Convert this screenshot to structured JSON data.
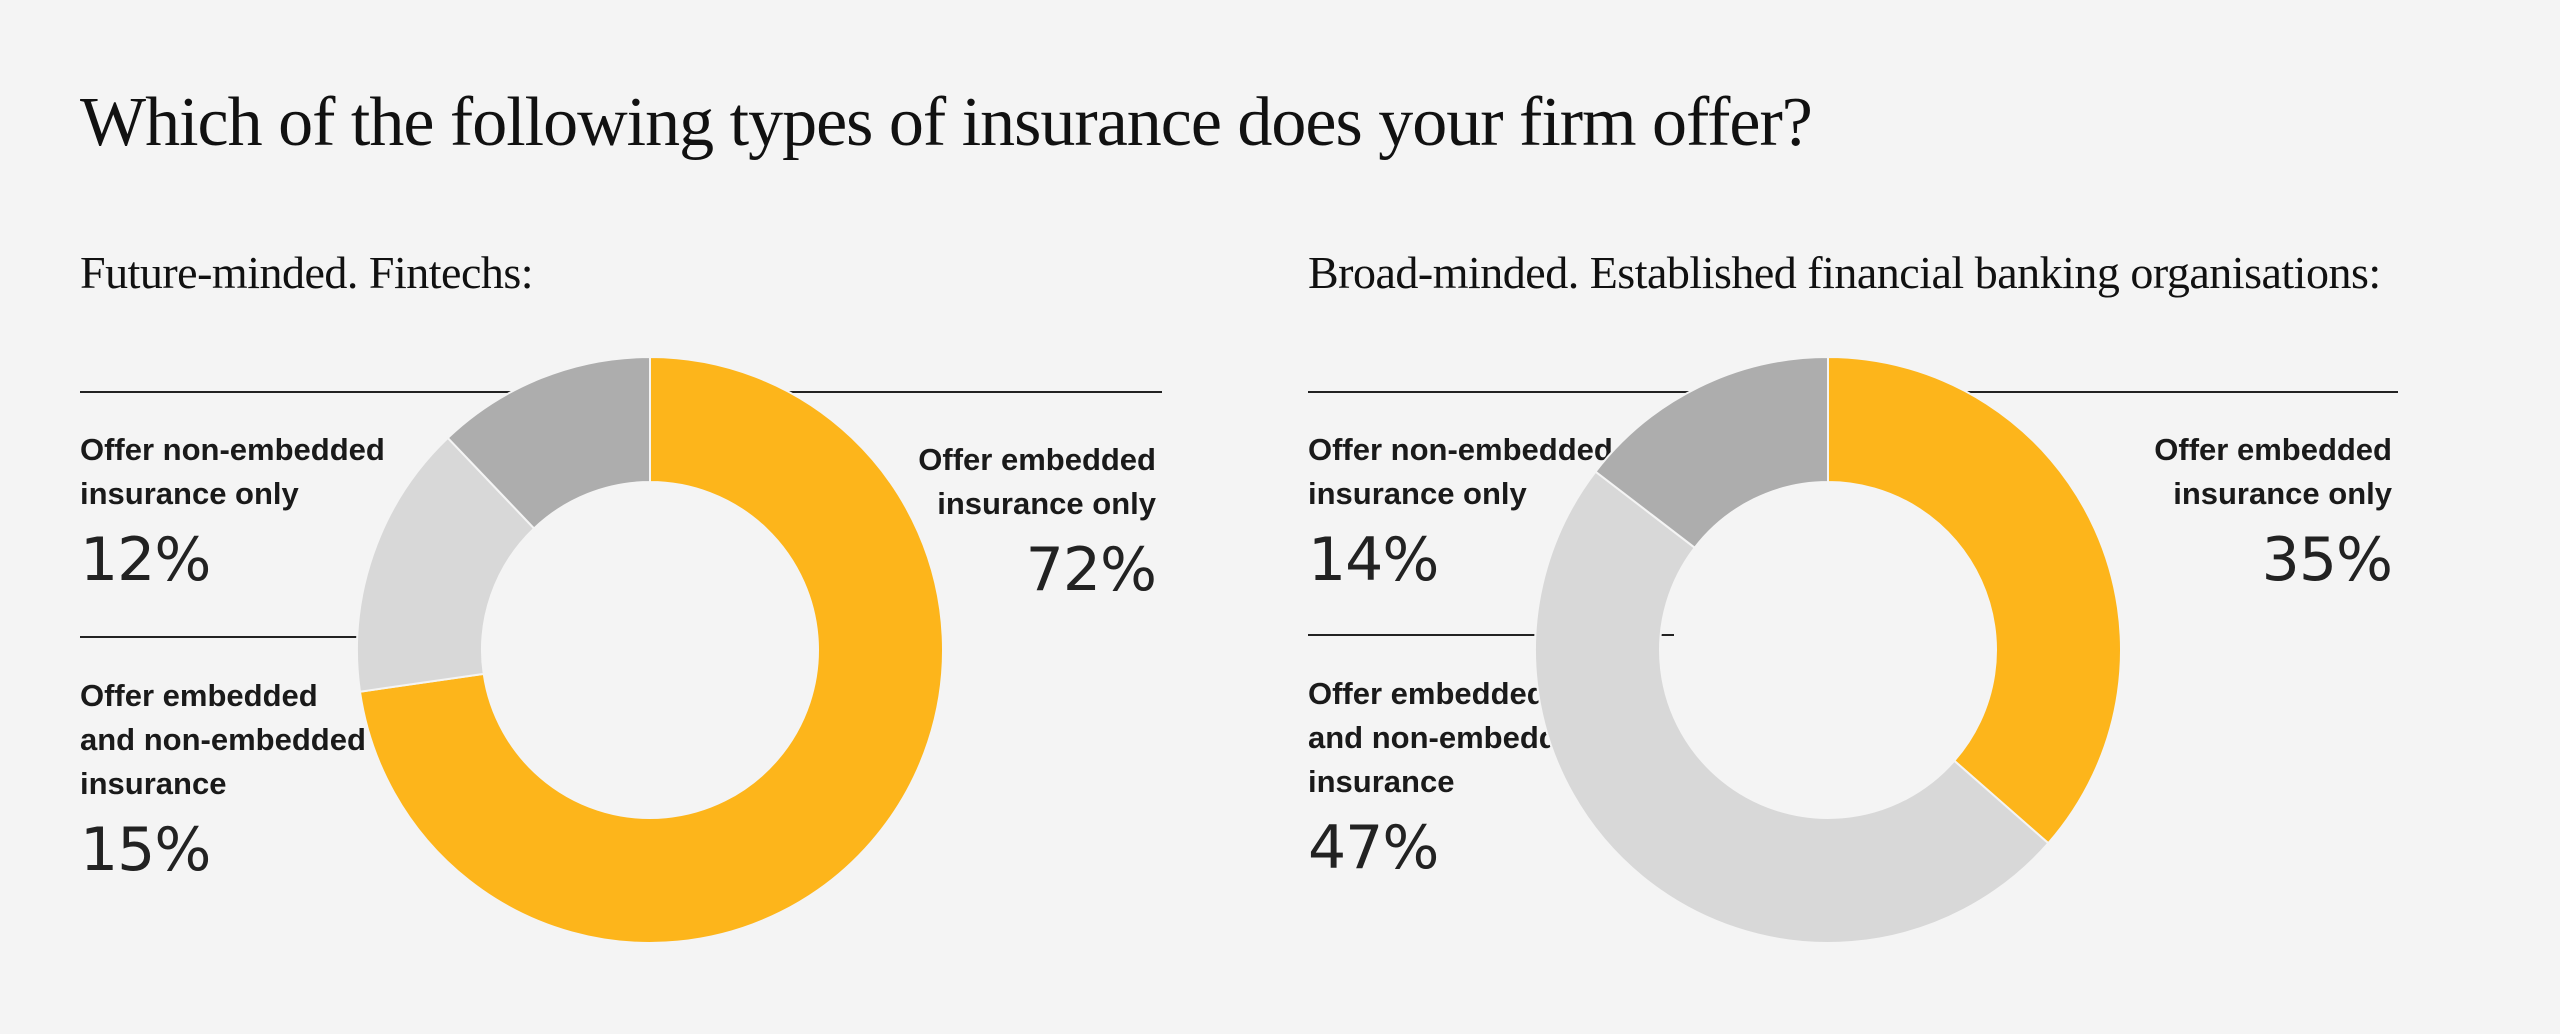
{
  "title": "Which of the following types of insurance does your firm offer?",
  "colors": {
    "background": "#f4f4f4",
    "embedded_only": "#fdb51b",
    "both": "#d8d8d8",
    "non_embedded_only": "#adadad"
  },
  "panels": [
    {
      "subtitle": "Future-minded. Fintechs:",
      "labels": {
        "non_embedded": [
          "Offer non-embedded",
          "insurance only"
        ],
        "both": [
          "Offer embedded",
          "and non-embedded",
          "insurance"
        ],
        "embedded": [
          "Offer embedded",
          "insurance only"
        ]
      },
      "values": {
        "non_embedded": "12%",
        "both": "15%",
        "embedded": "72%"
      }
    },
    {
      "subtitle": "Broad-minded. Established financial banking organisations:",
      "labels": {
        "non_embedded": [
          "Offer non-embedded",
          "insurance only"
        ],
        "both": [
          "Offer embedded",
          "and non-embedded",
          "insurance"
        ],
        "embedded": [
          "Offer embedded",
          "insurance only"
        ]
      },
      "values": {
        "non_embedded": "14%",
        "both": "47%",
        "embedded": "35%"
      }
    }
  ],
  "chart_data": [
    {
      "type": "pie",
      "donut": true,
      "title": "Future-minded. Fintechs:",
      "categories": [
        "Offer embedded insurance only",
        "Offer embedded and non-embedded insurance",
        "Offer non-embedded insurance only"
      ],
      "values": [
        72,
        15,
        12
      ],
      "colors": [
        "#fdb51b",
        "#d8d8d8",
        "#adadad"
      ]
    },
    {
      "type": "pie",
      "donut": true,
      "title": "Broad-minded. Established financial banking organisations:",
      "categories": [
        "Offer embedded insurance only",
        "Offer embedded and non-embedded insurance",
        "Offer non-embedded insurance only"
      ],
      "values": [
        35,
        47,
        14
      ],
      "colors": [
        "#fdb51b",
        "#d8d8d8",
        "#adadad"
      ]
    }
  ]
}
